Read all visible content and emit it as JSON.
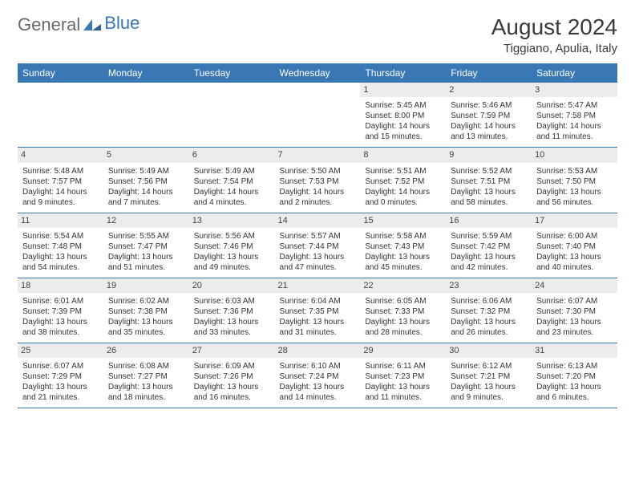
{
  "brand": {
    "part1": "General",
    "part2": "Blue"
  },
  "title": "August 2024",
  "location": "Tiggiano, Apulia, Italy",
  "colors": {
    "accent": "#3a78b5",
    "header_text": "#ffffff",
    "daynum_bg": "#ececec",
    "text": "#333333",
    "background": "#ffffff"
  },
  "typography": {
    "title_fontsize": 28,
    "location_fontsize": 15,
    "weekday_fontsize": 12,
    "cell_fontsize": 10
  },
  "weekdays": [
    "Sunday",
    "Monday",
    "Tuesday",
    "Wednesday",
    "Thursday",
    "Friday",
    "Saturday"
  ],
  "weeks": [
    [
      {
        "day": "",
        "sunrise": "",
        "sunset": "",
        "daylight": ""
      },
      {
        "day": "",
        "sunrise": "",
        "sunset": "",
        "daylight": ""
      },
      {
        "day": "",
        "sunrise": "",
        "sunset": "",
        "daylight": ""
      },
      {
        "day": "",
        "sunrise": "",
        "sunset": "",
        "daylight": ""
      },
      {
        "day": "1",
        "sunrise": "Sunrise: 5:45 AM",
        "sunset": "Sunset: 8:00 PM",
        "daylight": "Daylight: 14 hours and 15 minutes."
      },
      {
        "day": "2",
        "sunrise": "Sunrise: 5:46 AM",
        "sunset": "Sunset: 7:59 PM",
        "daylight": "Daylight: 14 hours and 13 minutes."
      },
      {
        "day": "3",
        "sunrise": "Sunrise: 5:47 AM",
        "sunset": "Sunset: 7:58 PM",
        "daylight": "Daylight: 14 hours and 11 minutes."
      }
    ],
    [
      {
        "day": "4",
        "sunrise": "Sunrise: 5:48 AM",
        "sunset": "Sunset: 7:57 PM",
        "daylight": "Daylight: 14 hours and 9 minutes."
      },
      {
        "day": "5",
        "sunrise": "Sunrise: 5:49 AM",
        "sunset": "Sunset: 7:56 PM",
        "daylight": "Daylight: 14 hours and 7 minutes."
      },
      {
        "day": "6",
        "sunrise": "Sunrise: 5:49 AM",
        "sunset": "Sunset: 7:54 PM",
        "daylight": "Daylight: 14 hours and 4 minutes."
      },
      {
        "day": "7",
        "sunrise": "Sunrise: 5:50 AM",
        "sunset": "Sunset: 7:53 PM",
        "daylight": "Daylight: 14 hours and 2 minutes."
      },
      {
        "day": "8",
        "sunrise": "Sunrise: 5:51 AM",
        "sunset": "Sunset: 7:52 PM",
        "daylight": "Daylight: 14 hours and 0 minutes."
      },
      {
        "day": "9",
        "sunrise": "Sunrise: 5:52 AM",
        "sunset": "Sunset: 7:51 PM",
        "daylight": "Daylight: 13 hours and 58 minutes."
      },
      {
        "day": "10",
        "sunrise": "Sunrise: 5:53 AM",
        "sunset": "Sunset: 7:50 PM",
        "daylight": "Daylight: 13 hours and 56 minutes."
      }
    ],
    [
      {
        "day": "11",
        "sunrise": "Sunrise: 5:54 AM",
        "sunset": "Sunset: 7:48 PM",
        "daylight": "Daylight: 13 hours and 54 minutes."
      },
      {
        "day": "12",
        "sunrise": "Sunrise: 5:55 AM",
        "sunset": "Sunset: 7:47 PM",
        "daylight": "Daylight: 13 hours and 51 minutes."
      },
      {
        "day": "13",
        "sunrise": "Sunrise: 5:56 AM",
        "sunset": "Sunset: 7:46 PM",
        "daylight": "Daylight: 13 hours and 49 minutes."
      },
      {
        "day": "14",
        "sunrise": "Sunrise: 5:57 AM",
        "sunset": "Sunset: 7:44 PM",
        "daylight": "Daylight: 13 hours and 47 minutes."
      },
      {
        "day": "15",
        "sunrise": "Sunrise: 5:58 AM",
        "sunset": "Sunset: 7:43 PM",
        "daylight": "Daylight: 13 hours and 45 minutes."
      },
      {
        "day": "16",
        "sunrise": "Sunrise: 5:59 AM",
        "sunset": "Sunset: 7:42 PM",
        "daylight": "Daylight: 13 hours and 42 minutes."
      },
      {
        "day": "17",
        "sunrise": "Sunrise: 6:00 AM",
        "sunset": "Sunset: 7:40 PM",
        "daylight": "Daylight: 13 hours and 40 minutes."
      }
    ],
    [
      {
        "day": "18",
        "sunrise": "Sunrise: 6:01 AM",
        "sunset": "Sunset: 7:39 PM",
        "daylight": "Daylight: 13 hours and 38 minutes."
      },
      {
        "day": "19",
        "sunrise": "Sunrise: 6:02 AM",
        "sunset": "Sunset: 7:38 PM",
        "daylight": "Daylight: 13 hours and 35 minutes."
      },
      {
        "day": "20",
        "sunrise": "Sunrise: 6:03 AM",
        "sunset": "Sunset: 7:36 PM",
        "daylight": "Daylight: 13 hours and 33 minutes."
      },
      {
        "day": "21",
        "sunrise": "Sunrise: 6:04 AM",
        "sunset": "Sunset: 7:35 PM",
        "daylight": "Daylight: 13 hours and 31 minutes."
      },
      {
        "day": "22",
        "sunrise": "Sunrise: 6:05 AM",
        "sunset": "Sunset: 7:33 PM",
        "daylight": "Daylight: 13 hours and 28 minutes."
      },
      {
        "day": "23",
        "sunrise": "Sunrise: 6:06 AM",
        "sunset": "Sunset: 7:32 PM",
        "daylight": "Daylight: 13 hours and 26 minutes."
      },
      {
        "day": "24",
        "sunrise": "Sunrise: 6:07 AM",
        "sunset": "Sunset: 7:30 PM",
        "daylight": "Daylight: 13 hours and 23 minutes."
      }
    ],
    [
      {
        "day": "25",
        "sunrise": "Sunrise: 6:07 AM",
        "sunset": "Sunset: 7:29 PM",
        "daylight": "Daylight: 13 hours and 21 minutes."
      },
      {
        "day": "26",
        "sunrise": "Sunrise: 6:08 AM",
        "sunset": "Sunset: 7:27 PM",
        "daylight": "Daylight: 13 hours and 18 minutes."
      },
      {
        "day": "27",
        "sunrise": "Sunrise: 6:09 AM",
        "sunset": "Sunset: 7:26 PM",
        "daylight": "Daylight: 13 hours and 16 minutes."
      },
      {
        "day": "28",
        "sunrise": "Sunrise: 6:10 AM",
        "sunset": "Sunset: 7:24 PM",
        "daylight": "Daylight: 13 hours and 14 minutes."
      },
      {
        "day": "29",
        "sunrise": "Sunrise: 6:11 AM",
        "sunset": "Sunset: 7:23 PM",
        "daylight": "Daylight: 13 hours and 11 minutes."
      },
      {
        "day": "30",
        "sunrise": "Sunrise: 6:12 AM",
        "sunset": "Sunset: 7:21 PM",
        "daylight": "Daylight: 13 hours and 9 minutes."
      },
      {
        "day": "31",
        "sunrise": "Sunrise: 6:13 AM",
        "sunset": "Sunset: 7:20 PM",
        "daylight": "Daylight: 13 hours and 6 minutes."
      }
    ]
  ]
}
